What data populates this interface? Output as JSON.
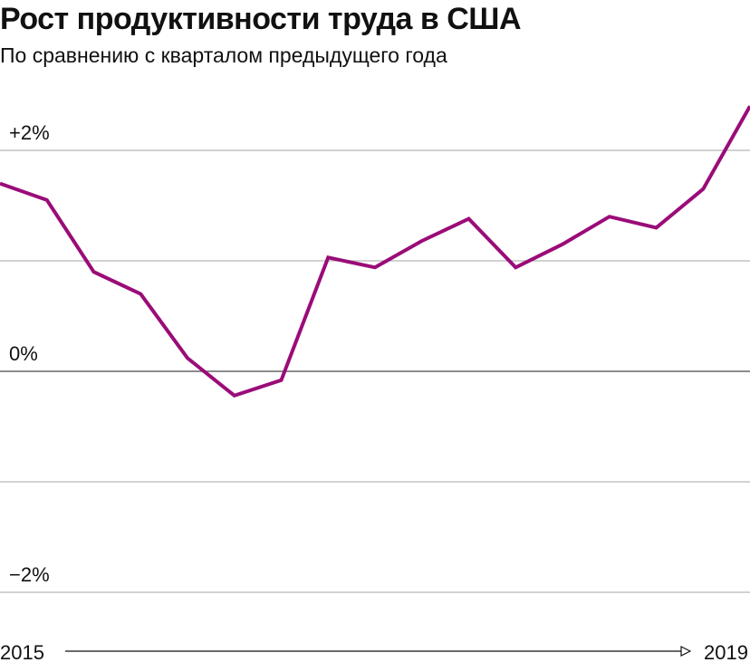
{
  "header": {
    "title": "Рост продуктивности труда в США",
    "subtitle": "По сравнению с кварталом предыдущего года"
  },
  "chart_data": {
    "type": "line",
    "title": "Рост продуктивности труда в США",
    "subtitle": "По сравнению с кварталом предыдущего года",
    "xlabel": "",
    "ylabel": "",
    "x_start_label": "2015",
    "x_end_label": "2019",
    "x": [
      "2015 Q1",
      "2015 Q2",
      "2015 Q3",
      "2015 Q4",
      "2016 Q1",
      "2016 Q2",
      "2016 Q3",
      "2016 Q4",
      "2017 Q1",
      "2017 Q2",
      "2017 Q3",
      "2017 Q4",
      "2018 Q1",
      "2018 Q2",
      "2018 Q3",
      "2018 Q4",
      "2019 Q1"
    ],
    "ylim": [
      -2,
      2.5
    ],
    "y_ticks": [
      {
        "value": 2,
        "label": "+2%"
      },
      {
        "value": 0,
        "label": "0%"
      },
      {
        "value": -2,
        "label": "−2%"
      }
    ],
    "gridlines": [
      2,
      1,
      0,
      -1,
      -2
    ],
    "series": [
      {
        "values": [
          1.7,
          1.55,
          0.9,
          0.7,
          0.12,
          -0.22,
          -0.08,
          1.03,
          0.94,
          1.18,
          1.38,
          0.94,
          1.15,
          1.4,
          1.3,
          1.65,
          2.4
        ],
        "color": "#9a0c78"
      }
    ],
    "grid": true,
    "colors": {
      "line": "#9a0c78",
      "gridline": "#b8b8b8",
      "zero_line": "#666666",
      "text": "#111111"
    }
  }
}
